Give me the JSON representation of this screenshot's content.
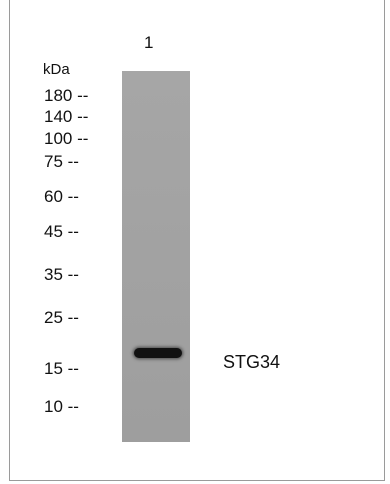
{
  "blot": {
    "lane_label": "1",
    "unit": "kDa",
    "markers": [
      {
        "label": "180 --"
      },
      {
        "label": "140 --"
      },
      {
        "label": "100 --"
      },
      {
        "label": "75 --"
      },
      {
        "label": "60 --"
      },
      {
        "label": "45 --"
      },
      {
        "label": "35 --"
      },
      {
        "label": "25 --"
      },
      {
        "label": "15 --"
      },
      {
        "label": "10 --"
      }
    ],
    "band_label": "STG34"
  },
  "colors": {
    "lane": "#a3a3a3",
    "band": "#111111"
  }
}
